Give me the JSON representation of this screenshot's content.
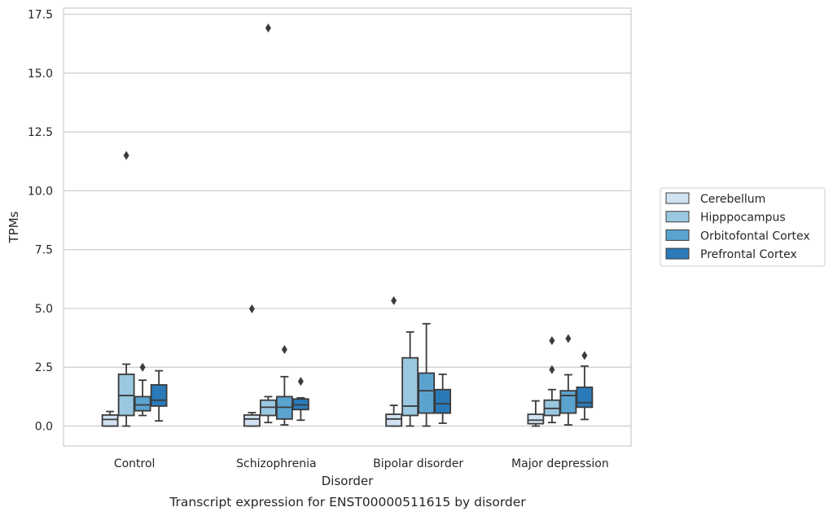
{
  "chart_data": {
    "type": "box",
    "xlabel": "Disorder",
    "ylabel": "TPMs",
    "caption": "Transcript expression for ENST00000511615 by disorder",
    "ylim": [
      -0.85,
      17.8
    ],
    "yticks": [
      "0.0",
      "2.5",
      "5.0",
      "7.5",
      "10.0",
      "12.5",
      "15.0",
      "17.5"
    ],
    "categories": [
      "Control",
      "Schizophrenia",
      "Bipolar disorder",
      "Major depression"
    ],
    "grid": "horizontal",
    "legend_position": "right",
    "series": [
      {
        "name": "Cerebellum",
        "color": "#d1e2f2",
        "boxes": [
          {
            "whisker_low": 0.0,
            "q1": 0.0,
            "median": 0.28,
            "q3": 0.47,
            "whisker_high": 0.62,
            "outliers": []
          },
          {
            "whisker_low": 0.0,
            "q1": 0.0,
            "median": 0.3,
            "q3": 0.47,
            "whisker_high": 0.57,
            "outliers": [
              4.98
            ]
          },
          {
            "whisker_low": 0.0,
            "q1": 0.0,
            "median": 0.3,
            "q3": 0.5,
            "whisker_high": 0.88,
            "outliers": [
              5.33
            ]
          },
          {
            "whisker_low": 0.0,
            "q1": 0.1,
            "median": 0.25,
            "q3": 0.5,
            "whisker_high": 1.07,
            "outliers": []
          }
        ]
      },
      {
        "name": "Hipppocampus",
        "color": "#9ac8e0",
        "boxes": [
          {
            "whisker_low": 0.0,
            "q1": 0.45,
            "median": 1.3,
            "q3": 2.2,
            "whisker_high": 2.63,
            "outliers": [
              11.5
            ]
          },
          {
            "whisker_low": 0.15,
            "q1": 0.45,
            "median": 0.8,
            "q3": 1.1,
            "whisker_high": 1.25,
            "outliers": [
              16.92
            ]
          },
          {
            "whisker_low": 0.0,
            "q1": 0.45,
            "median": 0.85,
            "q3": 2.9,
            "whisker_high": 4.0,
            "outliers": []
          },
          {
            "whisker_low": 0.15,
            "q1": 0.45,
            "median": 0.75,
            "q3": 1.1,
            "whisker_high": 1.55,
            "outliers": [
              2.4,
              3.63
            ]
          }
        ]
      },
      {
        "name": "Orbitofontal Cortex",
        "color": "#5ba3cf",
        "boxes": [
          {
            "whisker_low": 0.45,
            "q1": 0.65,
            "median": 0.9,
            "q3": 1.25,
            "whisker_high": 1.95,
            "outliers": [
              2.5
            ]
          },
          {
            "whisker_low": 0.05,
            "q1": 0.3,
            "median": 0.8,
            "q3": 1.25,
            "whisker_high": 2.1,
            "outliers": [
              3.25
            ]
          },
          {
            "whisker_low": 0.0,
            "q1": 0.55,
            "median": 1.5,
            "q3": 2.25,
            "whisker_high": 4.35,
            "outliers": []
          },
          {
            "whisker_low": 0.05,
            "q1": 0.55,
            "median": 1.3,
            "q3": 1.5,
            "whisker_high": 2.18,
            "outliers": [
              3.72
            ]
          }
        ]
      },
      {
        "name": "Prefrontal Cortex",
        "color": "#2a7ab9",
        "boxes": [
          {
            "whisker_low": 0.22,
            "q1": 0.85,
            "median": 1.1,
            "q3": 1.75,
            "whisker_high": 2.35,
            "outliers": []
          },
          {
            "whisker_low": 0.25,
            "q1": 0.7,
            "median": 0.9,
            "q3": 1.15,
            "whisker_high": 1.2,
            "outliers": [
              1.9
            ]
          },
          {
            "whisker_low": 0.12,
            "q1": 0.55,
            "median": 0.95,
            "q3": 1.55,
            "whisker_high": 2.2,
            "outliers": []
          },
          {
            "whisker_low": 0.28,
            "q1": 0.8,
            "median": 1.0,
            "q3": 1.65,
            "whisker_high": 2.55,
            "outliers": [
              3.0
            ]
          }
        ]
      }
    ]
  }
}
